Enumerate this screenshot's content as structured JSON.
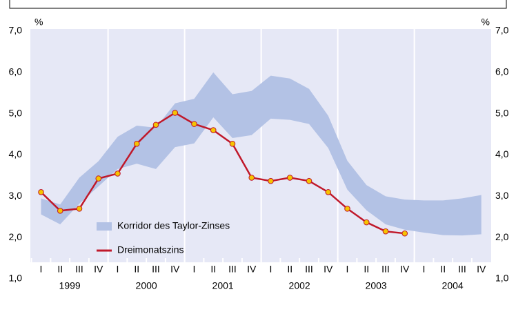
{
  "chart_data": {
    "type": "band-line",
    "categories": [
      "I",
      "II",
      "III",
      "IV",
      "I",
      "II",
      "III",
      "IV",
      "I",
      "II",
      "III",
      "IV",
      "I",
      "II",
      "III",
      "IV",
      "I",
      "II",
      "III",
      "IV",
      "I",
      "II",
      "III",
      "IV"
    ],
    "years": [
      "1999",
      "2000",
      "2001",
      "2002",
      "2003",
      "2004"
    ],
    "series": [
      {
        "name": "Korridor des Taylor-Zinses",
        "type": "band",
        "color": "#b3c2e5",
        "upper": [
          2.95,
          2.8,
          3.45,
          3.85,
          4.44,
          4.71,
          4.66,
          5.25,
          5.36,
          6.0,
          5.47,
          5.55,
          5.92,
          5.85,
          5.6,
          4.95,
          3.86,
          3.27,
          3.0,
          2.92,
          2.9,
          2.9,
          2.95,
          3.03
        ],
        "lower": [
          2.56,
          2.32,
          2.82,
          3.24,
          3.66,
          3.79,
          3.66,
          4.19,
          4.28,
          4.91,
          4.41,
          4.48,
          4.88,
          4.85,
          4.75,
          4.17,
          3.16,
          2.66,
          2.32,
          2.19,
          2.12,
          2.06,
          2.05,
          2.08
        ]
      },
      {
        "name": "Dreimonatszins",
        "type": "line",
        "color": "#c0182a",
        "marker_color": "#f5c400",
        "values": [
          3.1,
          2.65,
          2.7,
          3.43,
          3.55,
          4.27,
          4.73,
          5.02,
          4.75,
          4.6,
          4.27,
          3.45,
          3.37,
          3.45,
          3.37,
          3.1,
          2.7,
          2.37,
          2.15,
          2.1,
          null,
          null,
          null,
          null
        ]
      }
    ],
    "y_unit": "%",
    "y2_unit": "%",
    "ylim": [
      1,
      7
    ],
    "yticks": [
      {
        "value": 1,
        "label": "1,0"
      },
      {
        "value": 2,
        "label": "2,0"
      },
      {
        "value": 3,
        "label": "3,0"
      },
      {
        "value": 4,
        "label": "4,0"
      },
      {
        "value": 5,
        "label": "5,0"
      },
      {
        "value": 6,
        "label": "6,0"
      },
      {
        "value": 7,
        "label": "7,0"
      }
    ],
    "y2lim": [
      1,
      7
    ],
    "y2ticks": [
      {
        "value": 1,
        "label": "1,0"
      },
      {
        "value": 2,
        "label": "2,0"
      },
      {
        "value": 3,
        "label": "3,0"
      },
      {
        "value": 4,
        "label": "4,0"
      },
      {
        "value": 5,
        "label": "5,0"
      },
      {
        "value": 6,
        "label": "6,0"
      },
      {
        "value": 7,
        "label": "7,0"
      }
    ]
  }
}
